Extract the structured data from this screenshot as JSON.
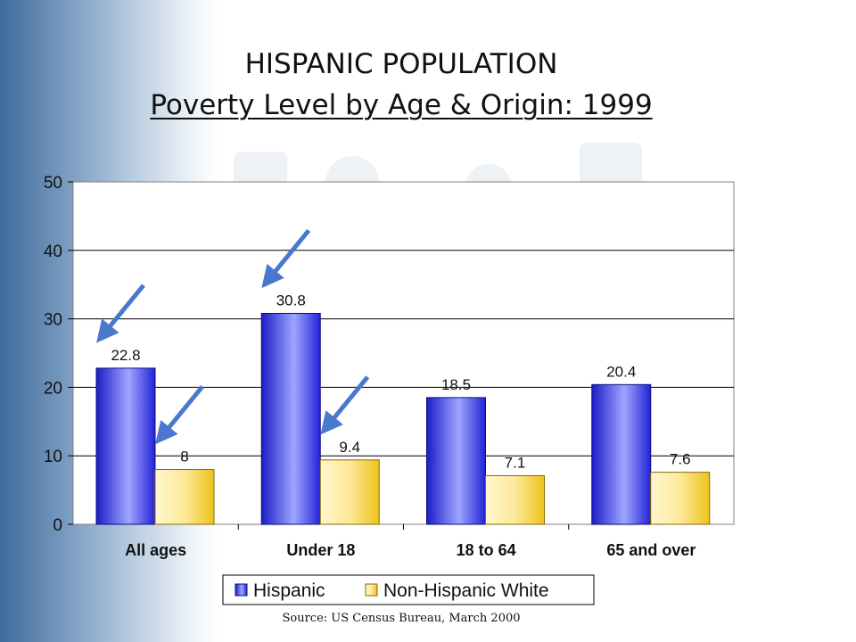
{
  "slide": {
    "title": "HISPANIC POPULATION",
    "subtitle": "Poverty Level by Age & Origin: 1999",
    "source": "Source: US Census Bureau, March 2000"
  },
  "colors": {
    "hispanic": "#3a3ae6",
    "non_hispanic_white": "#f5d45a",
    "arrow": "#4a78cf",
    "background_band": "#3f6b9c"
  },
  "chart_data": {
    "type": "bar",
    "categories": [
      "All ages",
      "Under 18",
      "18 to 64",
      "65 and over"
    ],
    "series": [
      {
        "name": "Hispanic",
        "values": [
          22.8,
          30.8,
          18.5,
          20.4
        ],
        "labels": [
          "22.8",
          "30.8",
          "18.5",
          "20.4"
        ]
      },
      {
        "name": "Non-Hispanic White",
        "values": [
          8,
          9.4,
          7.1,
          7.6
        ],
        "labels": [
          "8",
          "9.4",
          "7.1",
          "7.6"
        ]
      }
    ],
    "ylim": [
      0,
      50
    ],
    "yticks": [
      0,
      10,
      20,
      30,
      40,
      50
    ],
    "grid": true,
    "legend_position": "bottom",
    "xlabel": "",
    "ylabel": "",
    "annotations": [
      {
        "type": "arrow",
        "category": "All ages",
        "series": "Hispanic"
      },
      {
        "type": "arrow",
        "category": "All ages",
        "series": "Non-Hispanic White"
      },
      {
        "type": "arrow",
        "category": "Under 18",
        "series": "Hispanic"
      },
      {
        "type": "arrow",
        "category": "Under 18",
        "series": "Non-Hispanic White"
      }
    ]
  }
}
